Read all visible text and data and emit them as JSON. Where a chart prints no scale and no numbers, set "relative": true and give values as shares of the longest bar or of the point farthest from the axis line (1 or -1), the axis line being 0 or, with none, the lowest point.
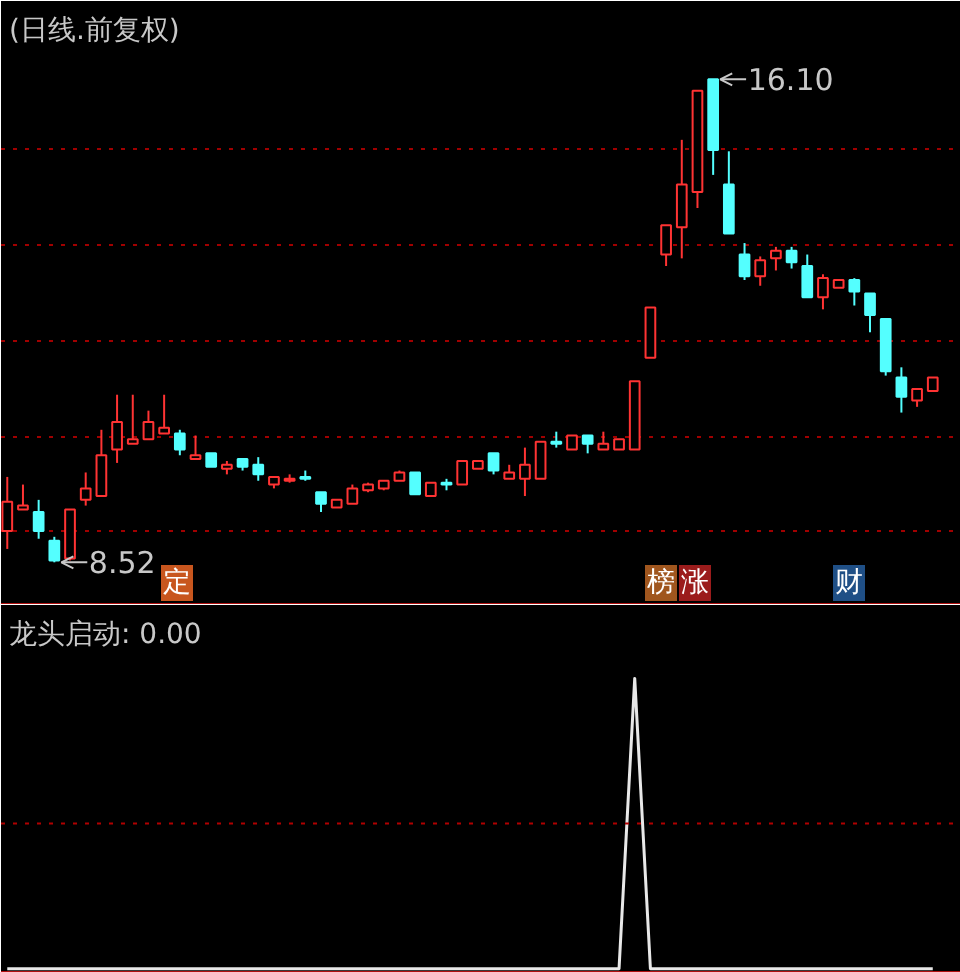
{
  "chart_data": [
    {
      "type": "candlestick",
      "title": "(日线.前复权)",
      "categories": [
        null,
        null,
        null,
        null,
        null,
        null,
        null,
        null,
        null,
        null,
        null,
        null,
        null,
        null,
        null,
        null,
        null,
        null,
        null,
        null,
        null,
        null,
        null,
        null,
        null,
        null,
        null,
        null,
        null,
        null,
        null,
        null,
        null,
        null,
        null,
        null,
        null,
        null,
        null,
        null,
        null,
        null,
        null,
        null,
        null,
        null,
        null,
        null,
        null,
        null,
        null,
        null,
        null,
        null,
        null,
        null,
        null,
        null,
        null,
        null
      ],
      "ohlc": [
        [
          9.01,
          9.86,
          8.73,
          9.47
        ],
        [
          9.35,
          9.74,
          9.35,
          9.41
        ],
        [
          9.31,
          9.5,
          8.89,
          9.01
        ],
        [
          8.86,
          8.92,
          8.52,
          8.55
        ],
        [
          8.58,
          9.35,
          8.55,
          9.35
        ],
        [
          9.5,
          9.93,
          9.41,
          9.68
        ],
        [
          9.56,
          10.6,
          9.56,
          10.2
        ],
        [
          10.29,
          11.15,
          10.08,
          10.72
        ],
        [
          10.38,
          11.15,
          10.38,
          10.45
        ],
        [
          10.45,
          10.9,
          10.45,
          10.72
        ],
        [
          10.54,
          11.15,
          10.54,
          10.63
        ],
        [
          10.54,
          10.6,
          10.2,
          10.29
        ],
        [
          10.14,
          10.51,
          10.14,
          10.2
        ],
        [
          10.23,
          10.23,
          10.02,
          10.02
        ],
        [
          9.99,
          10.11,
          9.9,
          10.05
        ],
        [
          10.14,
          10.14,
          9.96,
          10.02
        ],
        [
          10.05,
          10.17,
          9.8,
          9.9
        ],
        [
          9.74,
          9.86,
          9.68,
          9.86
        ],
        [
          9.8,
          9.9,
          9.77,
          9.83
        ],
        [
          9.86,
          9.96,
          9.8,
          9.83
        ],
        [
          9.62,
          9.62,
          9.31,
          9.44
        ],
        [
          9.38,
          9.5,
          9.38,
          9.5
        ],
        [
          9.44,
          9.74,
          9.44,
          9.68
        ],
        [
          9.65,
          9.77,
          9.62,
          9.74
        ],
        [
          9.68,
          9.8,
          9.65,
          9.8
        ],
        [
          9.8,
          9.96,
          9.8,
          9.93
        ],
        [
          9.93,
          9.93,
          9.59,
          9.59
        ],
        [
          9.56,
          9.77,
          9.56,
          9.77
        ],
        [
          9.77,
          9.83,
          9.65,
          9.74
        ],
        [
          9.74,
          10.11,
          9.74,
          10.11
        ],
        [
          9.99,
          10.11,
          9.99,
          10.11
        ],
        [
          10.23,
          10.23,
          9.9,
          9.96
        ],
        [
          9.83,
          10.05,
          9.83,
          9.93
        ],
        [
          9.83,
          10.32,
          9.56,
          10.05
        ],
        [
          9.83,
          10.41,
          9.83,
          10.41
        ],
        [
          10.41,
          10.57,
          10.32,
          10.38
        ],
        [
          10.29,
          10.51,
          10.29,
          10.51
        ],
        [
          10.51,
          10.51,
          10.23,
          10.38
        ],
        [
          10.29,
          10.57,
          10.29,
          10.38
        ],
        [
          10.29,
          10.45,
          10.29,
          10.45
        ],
        [
          10.29,
          11.36,
          10.29,
          11.36
        ],
        [
          11.73,
          12.52,
          11.73,
          12.52
        ],
        [
          13.35,
          13.81,
          13.17,
          13.81
        ],
        [
          13.78,
          15.15,
          13.29,
          14.45
        ],
        [
          14.33,
          15.92,
          14.08,
          15.92
        ],
        [
          16.1,
          16.1,
          14.6,
          14.99
        ],
        [
          14.45,
          14.97,
          13.68,
          13.68
        ],
        [
          13.35,
          13.53,
          12.95,
          13.01
        ],
        [
          13.01,
          13.32,
          12.86,
          13.26
        ],
        [
          13.29,
          13.47,
          13.1,
          13.41
        ],
        [
          13.41,
          13.47,
          13.13,
          13.23
        ],
        [
          13.17,
          13.35,
          12.68,
          12.68
        ],
        [
          12.68,
          13.04,
          12.49,
          12.98
        ],
        [
          12.83,
          12.95,
          12.83,
          12.95
        ],
        [
          12.95,
          12.98,
          12.55,
          12.77
        ],
        [
          12.74,
          12.74,
          12.13,
          12.4
        ],
        [
          12.34,
          12.34,
          11.45,
          11.52
        ],
        [
          11.42,
          11.58,
          10.87,
          11.12
        ],
        [
          11.06,
          11.24,
          10.96,
          11.24
        ],
        [
          11.21,
          11.42,
          11.21,
          11.42
        ]
      ],
      "colors": [
        "#ff3333",
        "#ff3333",
        "#54ffff",
        "#54ffff",
        "#ff3333",
        "#ff3333",
        "#ff3333",
        "#ff3333",
        "#ff3333",
        "#ff3333",
        "#ff3333",
        "#54ffff",
        "#ff3333",
        "#54ffff",
        "#ff3333",
        "#54ffff",
        "#54ffff",
        "#ff3333",
        "#ff3333",
        "#54ffff",
        "#54ffff",
        "#ff3333",
        "#ff3333",
        "#ff3333",
        "#ff3333",
        "#ff3333",
        "#54ffff",
        "#ff3333",
        "#54ffff",
        "#ff3333",
        "#ff3333",
        "#54ffff",
        "#ff3333",
        "#ff3333",
        "#ff3333",
        "#54ffff",
        "#ff3333",
        "#54ffff",
        "#ff3333",
        "#ff3333",
        "#ff3333",
        "#ff3333",
        "#ff3333",
        "#ff3333",
        "#ff3333",
        "#54ffff",
        "#54ffff",
        "#54ffff",
        "#ff3333",
        "#ff3333",
        "#54ffff",
        "#54ffff",
        "#ff3333",
        "#ff3333",
        "#54ffff",
        "#54ffff",
        "#54ffff",
        "#54ffff",
        "#ff3333",
        "#ff3333"
      ],
      "ylim": [
        7.85,
        16.45
      ],
      "yticks": [
        {
          "value": 9.0,
          "label": null
        },
        {
          "value": 10.5,
          "label": null
        },
        {
          "value": 12.0,
          "label": null
        },
        {
          "value": 13.5,
          "label": null
        },
        {
          "value": 15.0,
          "label": null
        }
      ],
      "grid": "y",
      "tick_labels": false,
      "annotations": [
        "8.52",
        "16.10",
        "定",
        "榜",
        "涨",
        "财"
      ]
    },
    {
      "type": "line",
      "title": "龙头启动: 0.00",
      "categories": [
        null,
        null,
        null,
        null,
        null,
        null,
        null,
        null,
        null,
        null,
        null,
        null,
        null,
        null,
        null,
        null,
        null,
        null,
        null,
        null,
        null,
        null,
        null,
        null,
        null,
        null,
        null,
        null,
        null,
        null,
        null,
        null,
        null,
        null,
        null,
        null,
        null,
        null,
        null,
        null,
        null,
        null,
        null,
        null,
        null,
        null,
        null,
        null,
        null,
        null,
        null,
        null,
        null,
        null,
        null,
        null,
        null,
        null,
        null,
        null
      ],
      "values": [
        0,
        0,
        0,
        0,
        0,
        0,
        0,
        0,
        0,
        0,
        0,
        0,
        0,
        0,
        0,
        0,
        0,
        0,
        0,
        0,
        0,
        0,
        0,
        0,
        0,
        0,
        0,
        0,
        0,
        0,
        0,
        0,
        0,
        0,
        0,
        0,
        0,
        0,
        0,
        0,
        1,
        0,
        0,
        0,
        0,
        0,
        0,
        0,
        0,
        0,
        0,
        0,
        0,
        0,
        0,
        0,
        0,
        0,
        0,
        0
      ],
      "color": "#e8e8e8",
      "relative": true,
      "tick_labels": false,
      "ref_lines": [
        {
          "axis": "y",
          "value": 0.5,
          "color": "#b00000",
          "line_style": "dotted"
        }
      ]
    }
  ]
}
